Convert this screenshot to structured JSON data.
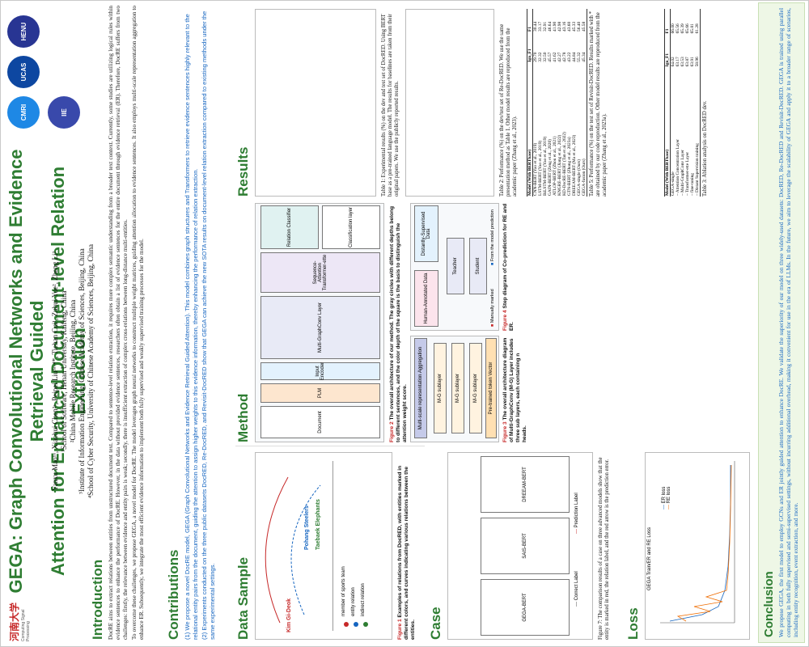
{
  "poster": {
    "title_line1": "GEGA: Graph Convolutional Networks and Evidence Retrieval Guided",
    "title_line2": "Attention for Enhanced Document-level Relation Extraction",
    "authors": "Yanxu Mao¹ᵃ, Xiaohui Chen²ᵃ, Peipei Liu³ᵃ‧⁴*, Tiehan Cui¹, Zuhui Yue², Zheng Li²",
    "affil1": "¹School of Software, Henan University, Kaifeng, China",
    "affil2": "²China Mobile Research Institute, Beijing, China",
    "affil3": "³Institute of Information Engineering, Chinese Academy of Sciences, Beijing, China",
    "affil4": "⁴School of Cyber Security, University of Chinese Academy of Sciences, Beijing, China",
    "logo_left_text": "河南大学",
    "logo_left_sub": "Computing Signal Processing",
    "logo_right": [
      "CMRI",
      "UCAS",
      "IIE",
      "HENU"
    ]
  },
  "introduction": {
    "heading": "Introduction",
    "p1": "DocRE aims to extract relations between entities from unstructured document text. Compared to sentence-level relation extraction, it requires more complex semantic understanding from a broader text context. Currently, some studies are utilizing logical rules within evidence sentences to enhance the performance of DocRE. However, in the data without provided evidence sentences, researchers often obtain a list of evidence sentences for the entire document through evidence retrieval (ER). Therefore, DocRE suffers from two challenges: firstly, the relevance between evidence and entity pairs is weak; secondly, there is insufficient extraction of complex cross-relations between long-distance multi-entities.",
    "p2": "To overcome these challenges, we propose GEGA, a novel model for DocRE. The model leverages graph neural networks to construct multiple weight matrices, guiding attention allocation to evidence sentences. It also employs multi-scale representation aggregation to enhance ER. Subsequently, we integrate the most efficient evidence information to implement both fully supervised and weakly supervised training processes for the model."
  },
  "contributions": {
    "heading": "Contributions",
    "c1": "(1) We propose a novel DocRE model, GEGA (Graph Convolutional Networks and Evidence Retrieval Guided Attention). This model combines graph structures and Transformers to retrieve evidence sentences highly relevant to the relational entity pairs from the document, guiding the attention to assign higher weights to this evidence information, thereby enhancing the performance of relation extraction.",
    "c2": "(2) Experiments conducted on the three public datasets DocRED, Re-DocRED, and Revisit-DocRED show that GEGA can achieve the new SOTA results on document-level relation extraction compared to existing methods under the same experimental settings."
  },
  "data_sample": {
    "heading": "Data Sample",
    "head_entity": "Kim Gi-Deok",
    "tail_entity_1": "Pohang Steelers",
    "tail_entity_2": "Taebaek Elephants",
    "relation_label": "member of sports team",
    "legend_relation": "entity relation",
    "legend_indirect": "indirect relation",
    "caption_num": "Figure 1",
    "caption": "Examples of relations from DocRED, with entities marked in different colors, and curves indicating various relations between the entities."
  },
  "method": {
    "heading": "Method",
    "fig2_num": "Figure 2",
    "fig2_caption": "The overall architecture of our method. The gray circles with different depths belong to different sentences, and the color depth of the square is the basis to distinguish the attention weight score.",
    "fig3_num": "Figure 3",
    "fig3_caption": "The overall architecture diagram of Multi-GraphConv (M-G) Layer includes three sub layers, each containing n heads.",
    "fig4_num": "Figure 4",
    "fig4_caption": "Step diagram of Co-prediction for RE and ER.",
    "labels": {
      "plm": "PLM",
      "input_encoder": "Input Encoder",
      "document": "Document",
      "mg_layer": "Multi-GraphConv Layer",
      "attention": "Sequence-Attention Transformer-ette",
      "relation_classifier": "Relation Classifier",
      "classification_layer": "Classification layer",
      "aggregation": "Multi-scale representation Aggregation",
      "pretrained_token": "Pre-trained token Vector",
      "mg_sublayer": "M-G sublayer",
      "teacher": "Teacher",
      "student": "Student",
      "distantly": "Distantly-Supervised Data",
      "human": "Human-Annotated Data",
      "manually_marked": "Manually marked",
      "model_prediction": "From the model prediction"
    }
  },
  "case": {
    "heading": "Case",
    "caption": "Figure 7: The comparison results of a case on three advanced models show that the entity is marked in red, the relation label, and the red arrow is the prediction error.",
    "models": [
      "GEGA-BERT",
      "SAIS-BERT",
      "DREEAM-BERT"
    ],
    "legend_correct": "Correct Label",
    "legend_pred": "Prediction Label"
  },
  "loss": {
    "heading": "Loss",
    "title": "GEGA Train/ER and RE Loss",
    "legend": [
      "ER loss",
      "RE loss"
    ]
  },
  "results": {
    "heading": "Results",
    "table1_caption": "Table 1: Experimental results (%) on the dev and test set of DocRED. Using BERT base as a pre-trained language model. The results for baselines are taken from their original papers. We use the publicly reported results.",
    "table2_caption": "Table 2: Performance (%) on the dev/test set of Re-DocRED. We use the same presentation method as Table 1. Other model results are reproduced from the academic paper (Zhang et al., 2023).",
    "table3_caption": "Table 3: Ablation analysis on DocRED dev.",
    "table5_caption": "Table 5: Performance (%) on the test set of Revisit-DocRED. Results marked with * are obtained by our code reproduction. Other model results are reproduced from the academic paper (Zhang et al., 2023a).",
    "t5_cols": [
      "Model (With BERTbase)",
      "Ign_F1",
      "F1"
    ],
    "t5_rows": [
      [
        "CNN-BERT (Yao et al., 2019)",
        "29.70",
        "30.44"
      ],
      [
        "LSTM-BERT (Yao et al., 2019)",
        "32.32",
        "33.17"
      ],
      [
        "BiLSTM-BERT (Yao et al., 2019)",
        "32.50",
        "32.91"
      ],
      [
        "GAIN-BERT (Zeng et al., 2020)",
        "45.57",
        "46.64"
      ],
      [
        "ATLOP-BERT (Zhou et al., 2021)",
        "41.62",
        "41.90"
      ],
      [
        "KNGRE-BERT (Jiang et al., 2022)",
        "42.27",
        "42.98"
      ],
      [
        "KD-DocRE-BERT (Tan et al., 2022)",
        "42.78",
        "43.16"
      ],
      [
        "GTN-BERT (Zhang et al., 2023a)",
        "43.22",
        "43.60"
      ],
      [
        "DREEAM-BERT (Ma et al., 2023)",
        "44.84",
        "45.33"
      ],
      [
        "GEGA-single (Ours)",
        "55.32",
        "56.40"
      ],
      [
        "GEGA-fusion (Ours)",
        "45.34",
        "45.58"
      ]
    ],
    "t3_cols": [
      "Model (With BERTbase)",
      "Ign_F1",
      "F1"
    ],
    "t3_rows": [
      [
        "GEGA-single",
        "64.02",
        "66.00"
      ],
      [
        "– Attention Concentration Layer",
        "63.17",
        "65.56"
      ],
      [
        "– Multi-GraphConv Layer",
        "63.53",
        "65.39"
      ],
      [
        "– Transformer-ette Layer",
        "63.87",
        "65.66"
      ],
      [
        "– fine-tuning",
        "63.91",
        "65.81"
      ],
      [
        "– Distant Supervision training",
        "58.96",
        "61.28"
      ]
    ]
  },
  "conclusion": {
    "heading": "Conclusion",
    "text": "We propose GEGA, the first model to employ GCNs and ER jointly guided attention to enhance DocRE. We validate the superiority of our model on three widely-used datasets: DocRED, Re-DocRED and Revisit-DocRED. GEGA is trained using parallel computing in both fully supervised and semi-supervised settings, without incurring additional overhead, making it convenient for use in the era of LLMs. In the future, we aim to leverage the scalability of GEGA and apply it to a broader range of scenarios, including entity recognition, event extraction, and more."
  },
  "colors": {
    "title_green": "#2e7d32",
    "contrib_blue": "#1565c0",
    "accent_red": "#c62828",
    "conclusion_bg": "#eef7e6"
  }
}
